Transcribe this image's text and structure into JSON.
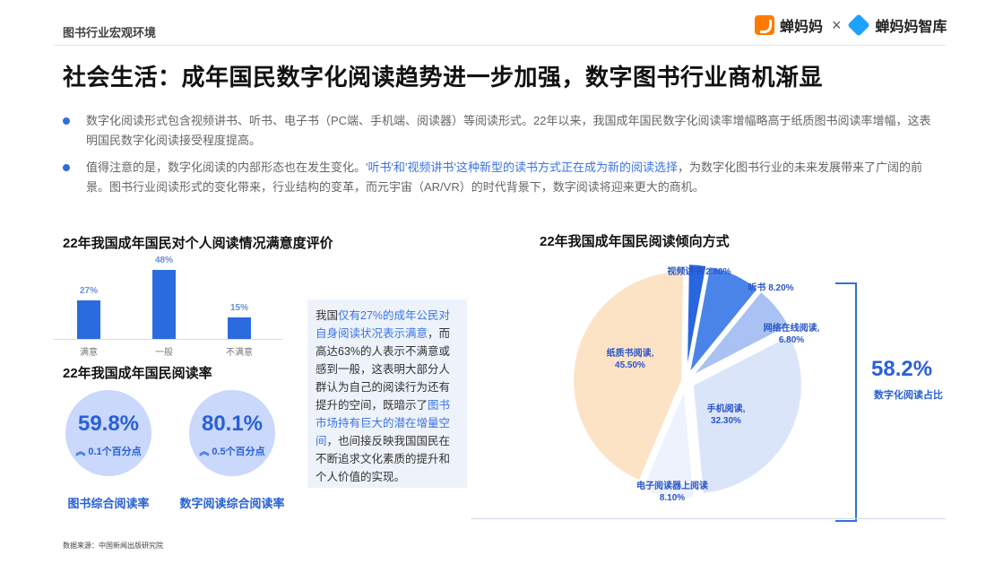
{
  "header": {
    "section_tag": "图书行业宏观环境",
    "brand_left": "蝉妈妈",
    "brand_x": "×",
    "brand_right": "蝉妈妈智库"
  },
  "title": "社会生活：成年国民数字化阅读趋势进一步加强，数字图书行业商机渐显",
  "bullets": [
    {
      "text": "数字化阅读形式包含视频讲书、听书、电子书（PC端、手机端、阅读器）等阅读形式。22年以来，我国成年国民数字化阅读率增幅略高于纸质图书阅读率增幅，这表明国民数字化阅读接受程度提高。"
    },
    {
      "pre": "值得注意的是，数字化阅读的内部形态也在发生变化。",
      "highlight": "'听书'和'视频讲书'这种新型的读书方式正在成为新的阅读选择",
      "post": "，为数字化图书行业的未来发展带来了广阔的前景。图书行业阅读形式的变化带来，行业结构的变革，而元宇宙（AR/VR）的时代背景下，数字阅读将迎来更大的商机。"
    }
  ],
  "satisfaction": {
    "title": "22年我国成年国民对个人阅读情况满意度评价"
  },
  "rates": {
    "title": "22年我国成年国民阅读率",
    "items": [
      {
        "value": "59.8%",
        "change": "0.1个百分点",
        "label": "图书综合阅读率"
      },
      {
        "value": "80.1%",
        "change": "0.5个百分点",
        "label": "数字阅读综合阅读率"
      }
    ]
  },
  "note": {
    "p1": "我国",
    "h1": "仅有27%的成年公民对自身阅读状况表示满意",
    "p2": "，而高达63%的人表示不满意或感到一般，这表明大部分人群认为自己的阅读行为还有提升的空间，既暗示了",
    "h2": "图书市场持有巨大的潜在增量空间",
    "p3": "，也间接反映我国国民在不断追求文化素质的提升和个人价值的实现。"
  },
  "pie": {
    "title": "22年我国成年国民阅读倾向方式",
    "digital_share": "58.2%",
    "digital_label": "数字化阅读占比"
  },
  "source": "数据来源：中国新闻出版研究院",
  "chart_data": [
    {
      "type": "bar",
      "title": "22年我国成年国民对个人阅读情况满意度评价",
      "categories": [
        "满意",
        "一般",
        "不满意"
      ],
      "values": [
        27,
        48,
        15
      ],
      "value_labels": [
        "27%",
        "48%",
        "15%"
      ],
      "color": "#2a6be0"
    },
    {
      "type": "pie",
      "title": "22年我国成年国民阅读倾向方式",
      "slices": [
        {
          "label": "纸质书阅读,",
          "pct": "45.50%",
          "value": 45.5,
          "color": "#fde3c6"
        },
        {
          "label": "视频讲书",
          "pct": "2.80%",
          "value": 2.8,
          "color": "#2866e0"
        },
        {
          "label": "听书",
          "pct": "8.20%",
          "value": 8.2,
          "color": "#4a84e8"
        },
        {
          "label": "网络在线阅读,",
          "pct": "6.80%",
          "value": 6.8,
          "color": "#a9c2f3"
        },
        {
          "label": "手机阅读,",
          "pct": "32.30%",
          "value": 32.3,
          "color": "#dbe5fa"
        },
        {
          "label": "电子阅读器上阅读",
          "pct": "8.10%",
          "value": 8.1,
          "color": "#eef2fc"
        }
      ]
    }
  ]
}
